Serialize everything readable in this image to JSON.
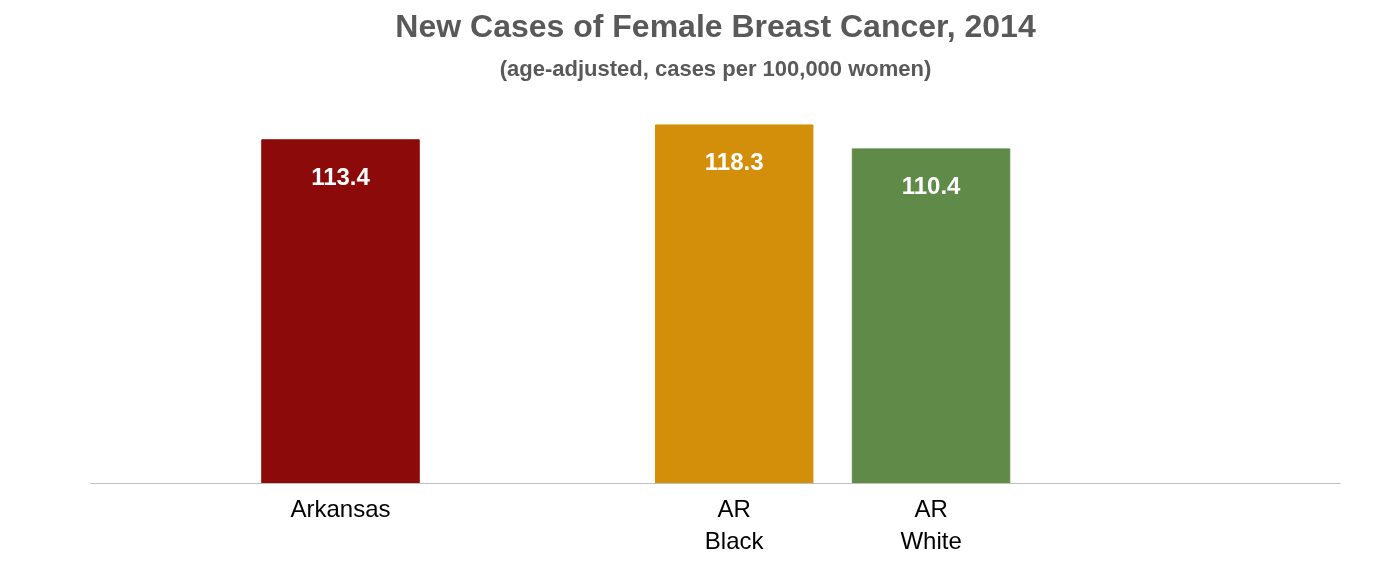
{
  "chart_data": {
    "type": "bar",
    "title": "New Cases of Female Breast Cancer, 2014",
    "subtitle": "(age-adjusted, cases per 100,000 women)",
    "categories": [
      "Arkansas",
      null,
      "AR Black",
      "AR White"
    ],
    "values": [
      113.4,
      null,
      118.3,
      110.4
    ],
    "colors": [
      "#8c0a0a",
      null,
      "#d48f0a",
      "#5f8a48"
    ],
    "data_labels": true
  }
}
